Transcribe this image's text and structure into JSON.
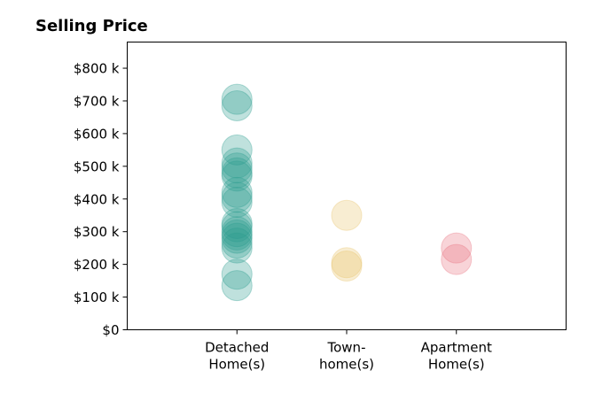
{
  "chart_data": {
    "type": "scatter",
    "title": "Selling Price",
    "xlabel": "",
    "ylabel": "",
    "categories": [
      {
        "lines": [
          "Detached",
          "Home(s)"
        ],
        "color": "#2a9d8f"
      },
      {
        "lines": [
          "Town-",
          "home(s)"
        ],
        "color": "#e9c46a"
      },
      {
        "lines": [
          "Apartment",
          "Home(s)"
        ],
        "color": "#e76f7e"
      }
    ],
    "y_ticks": [
      {
        "value": 0,
        "label": "$0"
      },
      {
        "value": 100,
        "label": "$100 k"
      },
      {
        "value": 200,
        "label": "$200 k"
      },
      {
        "value": 300,
        "label": "$300 k"
      },
      {
        "value": 400,
        "label": "$400 k"
      },
      {
        "value": 500,
        "label": "$500 k"
      },
      {
        "value": 600,
        "label": "$600 k"
      },
      {
        "value": 700,
        "label": "$700 k"
      },
      {
        "value": 800,
        "label": "$800 k"
      }
    ],
    "ylim": [
      0,
      880
    ],
    "xlim": [
      -1,
      3
    ],
    "grid": false,
    "points": [
      {
        "category": 0,
        "y": 705
      },
      {
        "category": 0,
        "y": 685
      },
      {
        "category": 0,
        "y": 550
      },
      {
        "category": 0,
        "y": 510
      },
      {
        "category": 0,
        "y": 495
      },
      {
        "category": 0,
        "y": 480
      },
      {
        "category": 0,
        "y": 470
      },
      {
        "category": 0,
        "y": 420
      },
      {
        "category": 0,
        "y": 405
      },
      {
        "category": 0,
        "y": 390
      },
      {
        "category": 0,
        "y": 325
      },
      {
        "category": 0,
        "y": 315
      },
      {
        "category": 0,
        "y": 300
      },
      {
        "category": 0,
        "y": 290
      },
      {
        "category": 0,
        "y": 280
      },
      {
        "category": 0,
        "y": 265
      },
      {
        "category": 0,
        "y": 250
      },
      {
        "category": 0,
        "y": 170
      },
      {
        "category": 0,
        "y": 135
      },
      {
        "category": 1,
        "y": 350
      },
      {
        "category": 1,
        "y": 205
      },
      {
        "category": 1,
        "y": 195
      },
      {
        "category": 2,
        "y": 250
      },
      {
        "category": 2,
        "y": 215
      }
    ]
  }
}
